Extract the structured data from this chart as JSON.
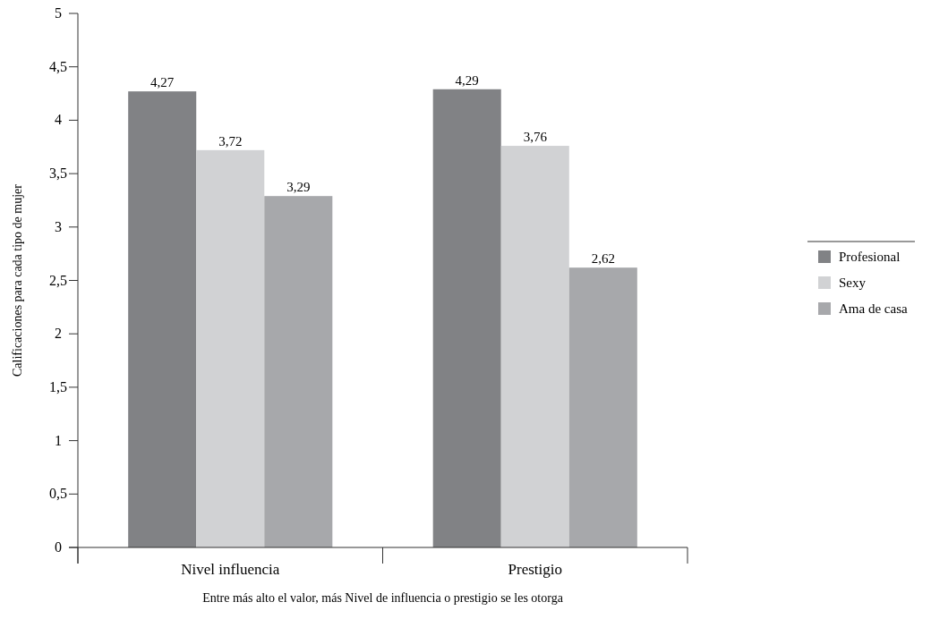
{
  "chart_data": {
    "type": "bar",
    "ylabel": "Calificaciones para cada tipo de mujer",
    "xlabel": "Entre más alto el valor, más Nivel de influencia o prestigio se les otorga",
    "categories": [
      "Nivel influencia",
      "Prestigio"
    ],
    "series": [
      {
        "name": "Profesional",
        "color": "#818285",
        "values": [
          4.27,
          4.29
        ],
        "value_labels": [
          "4,27",
          "4,29"
        ]
      },
      {
        "name": "Sexy",
        "color": "#d1d2d4",
        "values": [
          3.72,
          3.76
        ],
        "value_labels": [
          "3,72",
          "3,76"
        ]
      },
      {
        "name": "Ama de casa",
        "color": "#a7a8ab",
        "values": [
          3.29,
          2.62
        ],
        "value_labels": [
          "3,29",
          "2,62"
        ]
      }
    ],
    "ylim": [
      0,
      5
    ],
    "yticks": [
      0,
      {
        "value": 0.5,
        "label": "0,5"
      },
      1,
      {
        "value": 1.5,
        "label": "1,5"
      },
      2,
      {
        "value": 2.5,
        "label": "2,5"
      },
      3,
      {
        "value": 3.5,
        "label": "3,5"
      },
      4,
      {
        "value": 4.5,
        "label": "4,5"
      },
      5
    ],
    "grid": false,
    "legend": "right"
  }
}
